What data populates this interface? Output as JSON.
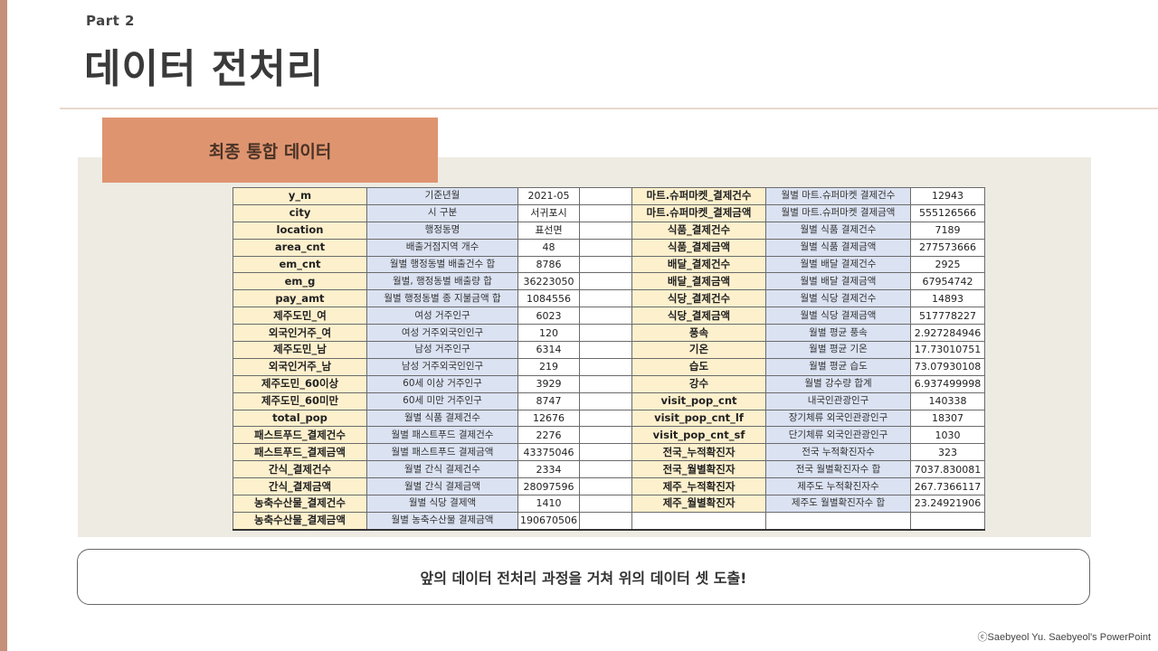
{
  "slide": {
    "part": "Part 2",
    "title": "데이터 전처리",
    "section_label": "최종 통합 데이터",
    "caption": "앞의 데이터 전처리 과정을 거쳐 위의 데이터 셋 도출!",
    "copyright": "ⓒSaebyeol Yu. Saebyeol's PowerPoint"
  },
  "table": {
    "rows": [
      {
        "left": {
          "var": "y_m",
          "desc": "기준년월",
          "val": "2021-05"
        },
        "right": {
          "var": "마트.슈퍼마켓_결제건수",
          "desc": "월별 마트.슈퍼마켓 결제건수",
          "val": "12943"
        }
      },
      {
        "left": {
          "var": "city",
          "desc": "시 구분",
          "val": "서귀포시"
        },
        "right": {
          "var": "마트.슈퍼마켓_결제금액",
          "desc": "월별 마트.슈퍼마켓 결제금액",
          "val": "555126566"
        }
      },
      {
        "left": {
          "var": "location",
          "desc": "행정동명",
          "val": "표선면"
        },
        "right": {
          "var": "식품_결제건수",
          "desc": "월별 식품 결제건수",
          "val": "7189"
        }
      },
      {
        "left": {
          "var": "area_cnt",
          "desc": "배출거점지역 개수",
          "val": "48"
        },
        "right": {
          "var": "식품_결제금액",
          "desc": "월별 식품 결제금액",
          "val": "277573666"
        }
      },
      {
        "left": {
          "var": "em_cnt",
          "desc": "월별 행정동별 배출건수 합",
          "val": "8786"
        },
        "right": {
          "var": "배달_결제건수",
          "desc": "월별 배달 결제건수",
          "val": "2925"
        }
      },
      {
        "left": {
          "var": "em_g",
          "desc": "월별, 행정동별 배출량 합",
          "val": "36223050"
        },
        "right": {
          "var": "배달_결제금액",
          "desc": "월별 배달 결제금액",
          "val": "67954742"
        }
      },
      {
        "left": {
          "var": "pay_amt",
          "desc": "월별 행정동별 종 지불금액 합",
          "val": "1084556"
        },
        "right": {
          "var": "식당_결제건수",
          "desc": "월별 식당 결제건수",
          "val": "14893"
        }
      },
      {
        "left": {
          "var": "제주도민_여",
          "desc": "여성 거주인구",
          "val": "6023"
        },
        "right": {
          "var": "식당_결제금액",
          "desc": "월별 식당 결제금액",
          "val": "517778227"
        }
      },
      {
        "left": {
          "var": "외국인거주_여",
          "desc": "여성 거주외국인인구",
          "val": "120"
        },
        "right": {
          "var": "풍속",
          "desc": "월별 평균 풍속",
          "val": "2.927284946"
        }
      },
      {
        "left": {
          "var": "제주도민_남",
          "desc": "남성 거주인구",
          "val": "6314"
        },
        "right": {
          "var": "기온",
          "desc": "월별 평균 기온",
          "val": "17.73010751"
        }
      },
      {
        "left": {
          "var": "외국인거주_남",
          "desc": "남성 거주외국인인구",
          "val": "219"
        },
        "right": {
          "var": "습도",
          "desc": "월별 평균 습도",
          "val": "73.07930108"
        }
      },
      {
        "left": {
          "var": "제주도민_60이상",
          "desc": "60세 이상 거주인구",
          "val": "3929"
        },
        "right": {
          "var": "강수",
          "desc": "월별 강수량 합계",
          "val": "6.937499998"
        }
      },
      {
        "left": {
          "var": "제주도민_60미만",
          "desc": "60세 미만 거주인구",
          "val": "8747"
        },
        "right": {
          "var": "visit_pop_cnt",
          "desc": "내국인관광인구",
          "val": "140338"
        }
      },
      {
        "left": {
          "var": "total_pop",
          "desc": "월별 식품 결제건수",
          "val": "12676"
        },
        "right": {
          "var": "visit_pop_cnt_lf",
          "desc": "장기체류 외국인관광인구",
          "val": "18307"
        }
      },
      {
        "left": {
          "var": "패스트푸드_결제건수",
          "desc": "월별 패스트푸드 결제건수",
          "val": "2276"
        },
        "right": {
          "var": "visit_pop_cnt_sf",
          "desc": "단기체류 외국인관광인구",
          "val": "1030"
        }
      },
      {
        "left": {
          "var": "패스트푸드_결제금액",
          "desc": "월별 패스트푸드 결제금액",
          "val": "43375046"
        },
        "right": {
          "var": "전국_누적확진자",
          "desc": "전국 누적확진자수",
          "val": "323"
        }
      },
      {
        "left": {
          "var": "간식_결제건수",
          "desc": "월별 간식 결제건수",
          "val": "2334"
        },
        "right": {
          "var": "전국_월별확진자",
          "desc": "전국 월별확진자수 합",
          "val": "7037.830081"
        }
      },
      {
        "left": {
          "var": "간식_결제금액",
          "desc": "월별 간식 결제금액",
          "val": "28097596"
        },
        "right": {
          "var": "제주_누적확진자",
          "desc": "제주도 누적확진자수",
          "val": "267.7366117"
        }
      },
      {
        "left": {
          "var": "농축수산물_결제건수",
          "desc": "월별 식당 결제액",
          "val": "1410"
        },
        "right": {
          "var": "제주_월별확진자",
          "desc": "제주도 월별확진자수 합",
          "val": "23.24921906"
        }
      },
      {
        "left": {
          "var": "농축수산물_결제금액",
          "desc": "월별 농축수산물 결제금액",
          "val": "190670506"
        },
        "right": {
          "var": "",
          "desc": "",
          "val": ""
        }
      }
    ]
  }
}
